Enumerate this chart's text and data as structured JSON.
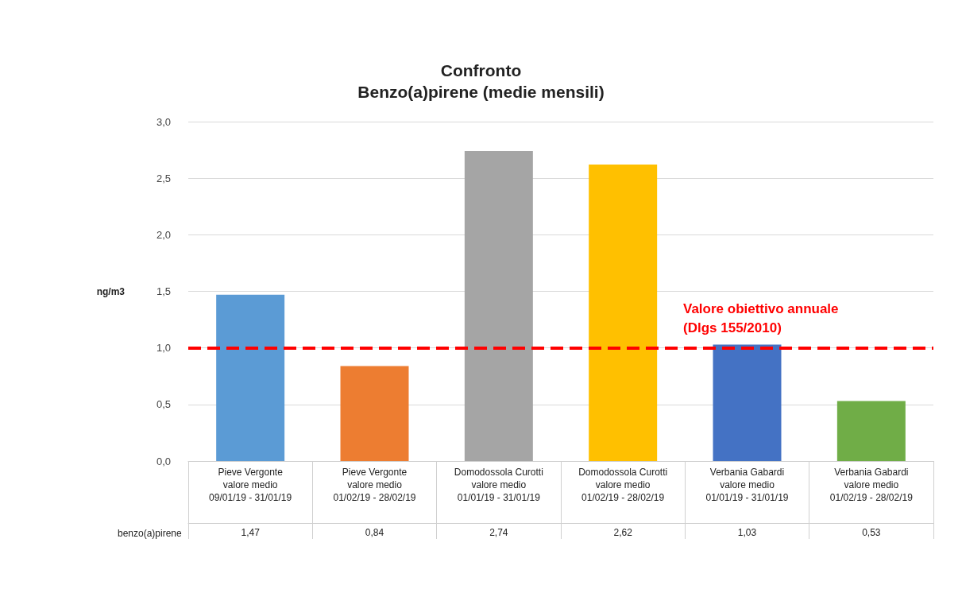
{
  "chart_data": {
    "type": "bar",
    "title": "Confronto\nBenzo(a)pirene (medie mensili)",
    "ylabel": "ng/m3",
    "categories": [
      "Pieve Vergonte\nvalore medio\n09/01/19 - 31/01/19",
      "Pieve Vergonte\nvalore medio\n01/02/19 - 28/02/19",
      "Domodossola Curotti\nvalore medio\n01/01/19 - 31/01/19",
      "Domodossola Curotti\nvalore medio\n01/02/19 - 28/02/19",
      "Verbania Gabardi\nvalore medio\n01/01/19 - 31/01/19",
      "Verbania Gabardi\nvalore medio\n01/02/19 - 28/02/19"
    ],
    "annotations": [
      "benzo(a)pirene"
    ],
    "series": [
      {
        "values": [
          1.47,
          0.84,
          2.74,
          2.62,
          1.03,
          0.53
        ],
        "colors": [
          "#5b9bd5",
          "#ed7d31",
          "#a5a5a5",
          "#ffc000",
          "#4472c4",
          "#70ad47"
        ],
        "value_labels": [
          "1,47",
          "0,84",
          "2,74",
          "2,62",
          "1,03",
          "0,53"
        ]
      }
    ],
    "ylim": [
      0,
      3
    ],
    "yticks": [
      {
        "value": 0,
        "label": "0,0"
      },
      {
        "value": 0.5,
        "label": "0,5"
      },
      {
        "value": 1,
        "label": "1,0"
      },
      {
        "value": 1.5,
        "label": "1,5"
      },
      {
        "value": 2,
        "label": "2,0"
      },
      {
        "value": 2.5,
        "label": "2,5"
      },
      {
        "value": 3,
        "label": "3,0"
      }
    ],
    "grid": "y",
    "ref_lines": [
      {
        "axis": "y",
        "value": 1,
        "label": "Valore obiettivo annuale\n(Dlgs 155/2010)",
        "color": "#ff0000",
        "line_style": "dashed"
      }
    ]
  }
}
